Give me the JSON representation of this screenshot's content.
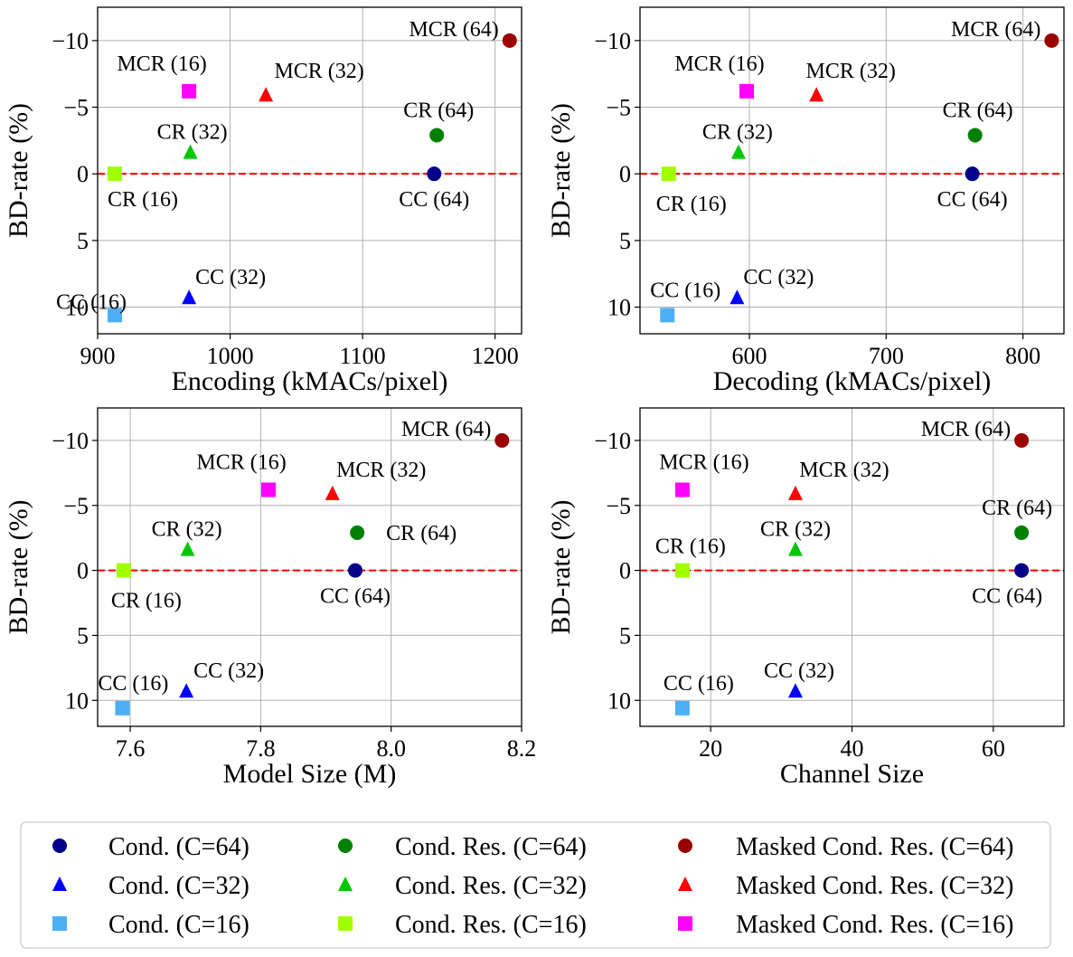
{
  "colors": {
    "cc64": "#00008b",
    "cc32": "#0000ff",
    "cc16": "#4db0f5",
    "cr64": "#008000",
    "cr32": "#00c800",
    "cr16": "#a0ff00",
    "mcr64": "#9b0000",
    "mcr32": "#ff0000",
    "mcr16": "#ff00ff",
    "zero_line": "#ff0000",
    "grid": "#b0b0b0"
  },
  "chart_data": [
    {
      "type": "scatter",
      "xlabel": "Encoding (kMACs/pixel)",
      "ylabel": "BD-rate (%)",
      "xlim": [
        900,
        1220
      ],
      "ylim": [
        12,
        -12.5
      ],
      "xticks": [
        900,
        1000,
        1100,
        1200
      ],
      "yticks": [
        -10,
        -5,
        0,
        5,
        10
      ],
      "ytick_labels": [
        "−10",
        "−5",
        "0",
        "5",
        "10"
      ],
      "zero_line": true,
      "points": [
        {
          "series": "cc64",
          "marker": "circle",
          "x": 1154,
          "y": 0,
          "label": "CC (64)"
        },
        {
          "series": "cc32",
          "marker": "triangle",
          "x": 969,
          "y": 9.3,
          "label": "CC (32)"
        },
        {
          "series": "cc16",
          "marker": "square",
          "x": 913,
          "y": 10.6,
          "label": "CC (16)"
        },
        {
          "series": "cr64",
          "marker": "circle",
          "x": 1156,
          "y": -2.9,
          "label": "CR (64)"
        },
        {
          "series": "cr32",
          "marker": "triangle",
          "x": 970,
          "y": -1.6,
          "label": "CR (32)"
        },
        {
          "series": "cr16",
          "marker": "square",
          "x": 913,
          "y": 0,
          "label": "CR (16)"
        },
        {
          "series": "mcr64",
          "marker": "circle",
          "x": 1211,
          "y": -10,
          "label": "MCR (64)"
        },
        {
          "series": "mcr32",
          "marker": "triangle",
          "x": 1027,
          "y": -5.9,
          "label": "MCR (32)"
        },
        {
          "series": "mcr16",
          "marker": "square",
          "x": 969,
          "y": -6.2,
          "label": "MCR (16)"
        }
      ]
    },
    {
      "type": "scatter",
      "xlabel": "Decoding (kMACs/pixel)",
      "ylabel": "BD-rate (%)",
      "xlim": [
        520,
        830
      ],
      "ylim": [
        12,
        -12.5
      ],
      "xticks": [
        600,
        700,
        800
      ],
      "yticks": [
        -10,
        -5,
        0,
        5,
        10
      ],
      "ytick_labels": [
        "−10",
        "−5",
        "0",
        "5",
        "10"
      ],
      "zero_line": true,
      "points": [
        {
          "series": "cc64",
          "marker": "circle",
          "x": 763,
          "y": 0,
          "label": "CC (64)"
        },
        {
          "series": "cc32",
          "marker": "triangle",
          "x": 591,
          "y": 9.3,
          "label": "CC (32)"
        },
        {
          "series": "cc16",
          "marker": "square",
          "x": 540,
          "y": 10.6,
          "label": "CC (16)"
        },
        {
          "series": "cr64",
          "marker": "circle",
          "x": 765,
          "y": -2.9,
          "label": "CR (64)"
        },
        {
          "series": "cr32",
          "marker": "triangle",
          "x": 592,
          "y": -1.6,
          "label": "CR (32)"
        },
        {
          "series": "cr16",
          "marker": "square",
          "x": 541,
          "y": 0,
          "label": "CR (16)"
        },
        {
          "series": "mcr64",
          "marker": "circle",
          "x": 821,
          "y": -10,
          "label": "MCR (64)"
        },
        {
          "series": "mcr32",
          "marker": "triangle",
          "x": 649,
          "y": -5.9,
          "label": "MCR (32)"
        },
        {
          "series": "mcr16",
          "marker": "square",
          "x": 598,
          "y": -6.2,
          "label": "MCR (16)"
        }
      ]
    },
    {
      "type": "scatter",
      "xlabel": "Model Size (M)",
      "ylabel": "BD-rate (%)",
      "xlim": [
        7.55,
        8.2
      ],
      "ylim": [
        12,
        -12.5
      ],
      "xticks": [
        7.6,
        7.8,
        8.0,
        8.2
      ],
      "xtick_labels": [
        "7.6",
        "7.8",
        "8.0",
        "8.2"
      ],
      "yticks": [
        -10,
        -5,
        0,
        5,
        10
      ],
      "ytick_labels": [
        "−10",
        "−5",
        "0",
        "5",
        "10"
      ],
      "zero_line": true,
      "points": [
        {
          "series": "cc64",
          "marker": "circle",
          "x": 7.945,
          "y": 0,
          "label": "CC (64)"
        },
        {
          "series": "cc32",
          "marker": "triangle",
          "x": 7.686,
          "y": 9.3,
          "label": "CC (32)"
        },
        {
          "series": "cc16",
          "marker": "square",
          "x": 7.588,
          "y": 10.6,
          "label": "CC (16)"
        },
        {
          "series": "cr64",
          "marker": "circle",
          "x": 7.948,
          "y": -2.9,
          "label": "CR (64)"
        },
        {
          "series": "cr32",
          "marker": "triangle",
          "x": 7.688,
          "y": -1.6,
          "label": "CR (32)"
        },
        {
          "series": "cr16",
          "marker": "square",
          "x": 7.59,
          "y": 0,
          "label": "CR (16)"
        },
        {
          "series": "mcr64",
          "marker": "circle",
          "x": 8.17,
          "y": -10,
          "label": "MCR (64)"
        },
        {
          "series": "mcr32",
          "marker": "triangle",
          "x": 7.91,
          "y": -5.9,
          "label": "MCR (32)"
        },
        {
          "series": "mcr16",
          "marker": "square",
          "x": 7.812,
          "y": -6.2,
          "label": "MCR (16)"
        }
      ]
    },
    {
      "type": "scatter",
      "xlabel": "Channel Size",
      "ylabel": "BD-rate (%)",
      "xlim": [
        10,
        70
      ],
      "ylim": [
        12,
        -12.5
      ],
      "xticks": [
        20,
        40,
        60
      ],
      "yticks": [
        -10,
        -5,
        0,
        5,
        10
      ],
      "ytick_labels": [
        "−10",
        "−5",
        "0",
        "5",
        "10"
      ],
      "zero_line": true,
      "points": [
        {
          "series": "cc64",
          "marker": "circle",
          "x": 64,
          "y": 0,
          "label": "CC (64)"
        },
        {
          "series": "cc32",
          "marker": "triangle",
          "x": 32,
          "y": 9.3,
          "label": "CC (32)"
        },
        {
          "series": "cc16",
          "marker": "square",
          "x": 16,
          "y": 10.6,
          "label": "CC (16)"
        },
        {
          "series": "cr64",
          "marker": "circle",
          "x": 64,
          "y": -2.9,
          "label": "CR (64)"
        },
        {
          "series": "cr32",
          "marker": "triangle",
          "x": 32,
          "y": -1.6,
          "label": "CR (32)"
        },
        {
          "series": "cr16",
          "marker": "square",
          "x": 16,
          "y": 0,
          "label": "CR (16)"
        },
        {
          "series": "mcr64",
          "marker": "circle",
          "x": 64,
          "y": -10,
          "label": "MCR (64)"
        },
        {
          "series": "mcr32",
          "marker": "triangle",
          "x": 32,
          "y": -5.9,
          "label": "MCR (32)"
        },
        {
          "series": "mcr16",
          "marker": "square",
          "x": 16,
          "y": -6.2,
          "label": "MCR (16)"
        }
      ]
    }
  ],
  "legend": {
    "placement": "bottom",
    "entries": [
      {
        "series": "cc64",
        "marker": "circle",
        "label": "Cond. (C=64)"
      },
      {
        "series": "cc32",
        "marker": "triangle",
        "label": "Cond. (C=32)"
      },
      {
        "series": "cc16",
        "marker": "square",
        "label": "Cond. (C=16)"
      },
      {
        "series": "cr64",
        "marker": "circle",
        "label": "Cond. Res. (C=64)"
      },
      {
        "series": "cr32",
        "marker": "triangle",
        "label": "Cond. Res. (C=32)"
      },
      {
        "series": "cr16",
        "marker": "square",
        "label": "Cond. Res. (C=16)"
      },
      {
        "series": "mcr64",
        "marker": "circle",
        "label": "Masked Cond. Res. (C=64)"
      },
      {
        "series": "mcr32",
        "marker": "triangle",
        "label": "Masked Cond. Res. (C=32)"
      },
      {
        "series": "mcr16",
        "marker": "square",
        "label": "Masked Cond. Res. (C=16)"
      }
    ]
  }
}
